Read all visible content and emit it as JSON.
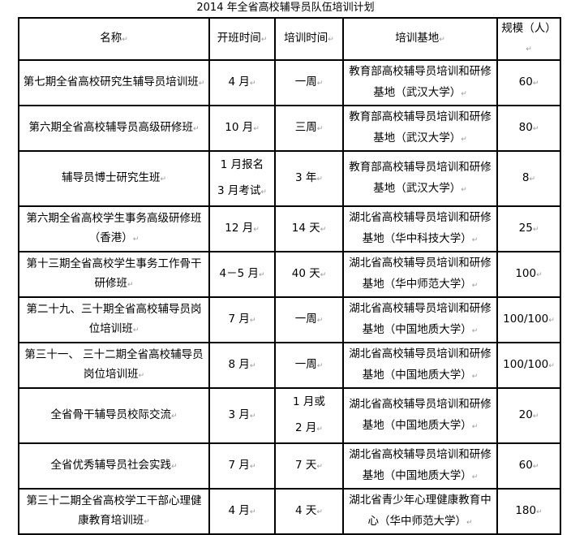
{
  "title": "2014 年全省高校辅导员队伍培训计划",
  "headers": [
    "名称",
    "开班时间",
    "培训时间",
    "培训基地",
    "规模（人）"
  ],
  "rows": [
    {
      "name": [
        "第七期全省高校研究生辅导员培训班"
      ],
      "start": [
        "4 月"
      ],
      "duration": [
        "一周"
      ],
      "base": [
        "教育部高校辅导员培训和研修",
        "基地（武汉大学）"
      ],
      "size": "60"
    },
    {
      "name": [
        "第六期全省高校辅导员高级研修班"
      ],
      "start": [
        "10 月"
      ],
      "duration": [
        "三周"
      ],
      "base": [
        "教育部高校辅导员培训和研修",
        "基地（武汉大学）"
      ],
      "size": "80"
    },
    {
      "name": [
        "辅导员博士研究生班"
      ],
      "start": [
        "1 月报名",
        "3 月考试"
      ],
      "duration": [
        "3 年"
      ],
      "base": [
        "教育部高校辅导员培训和研修",
        "基地（武汉大学）"
      ],
      "size": "8"
    },
    {
      "name": [
        "第六期全省高校学生事务高级研修班",
        "（香港）"
      ],
      "start": [
        "12 月"
      ],
      "duration": [
        "14 天"
      ],
      "base": [
        "湖北省高校辅导员培训和研修",
        "基地（华中科技大学）"
      ],
      "size": "25"
    },
    {
      "name": [
        "第十三期全省高校学生事务工作骨干",
        "研修班"
      ],
      "start": [
        "4－5 月"
      ],
      "duration": [
        "40 天"
      ],
      "base": [
        "湖北省高校辅导员培训和研修",
        "基地（华中师范大学）"
      ],
      "size": "100"
    },
    {
      "name": [
        "第二十九、三十期全省高校辅导员岗",
        "位培训班"
      ],
      "start": [
        "7 月"
      ],
      "duration": [
        "一周"
      ],
      "base": [
        "湖北省高校辅导员培训和研修",
        "基地（中国地质大学）"
      ],
      "size": "100/100"
    },
    {
      "name": [
        "第三十一、 三十二期全省高校辅导员",
        "岗位培训班"
      ],
      "start": [
        "8 月"
      ],
      "duration": [
        "一周"
      ],
      "base": [
        "湖北省高校辅导员培训和研修",
        "基地（中国地质大学）"
      ],
      "size": "100/100"
    },
    {
      "name": [
        "全省骨干辅导员校际交流"
      ],
      "start": [
        "3 月"
      ],
      "duration": [
        "1 月或",
        "2 月"
      ],
      "base": [
        "湖北省高校辅导员培训和研修",
        "基地（中国地质大学）"
      ],
      "size": "20"
    },
    {
      "name": [
        "全省优秀辅导员社会实践"
      ],
      "start": [
        "7 月"
      ],
      "duration": [
        "7 天"
      ],
      "base": [
        "湖北省高校辅导员培训和研修",
        "基地（中国地质大学）"
      ],
      "size": "60"
    },
    {
      "name": [
        "第三十二期全省高校学工干部心理健",
        "康教育培训班"
      ],
      "start": [
        "4 月"
      ],
      "duration": [
        "4 天"
      ],
      "base": [
        "湖北省青少年心理健康教育中",
        "心（华中师范大学）"
      ],
      "size": "180"
    }
  ]
}
